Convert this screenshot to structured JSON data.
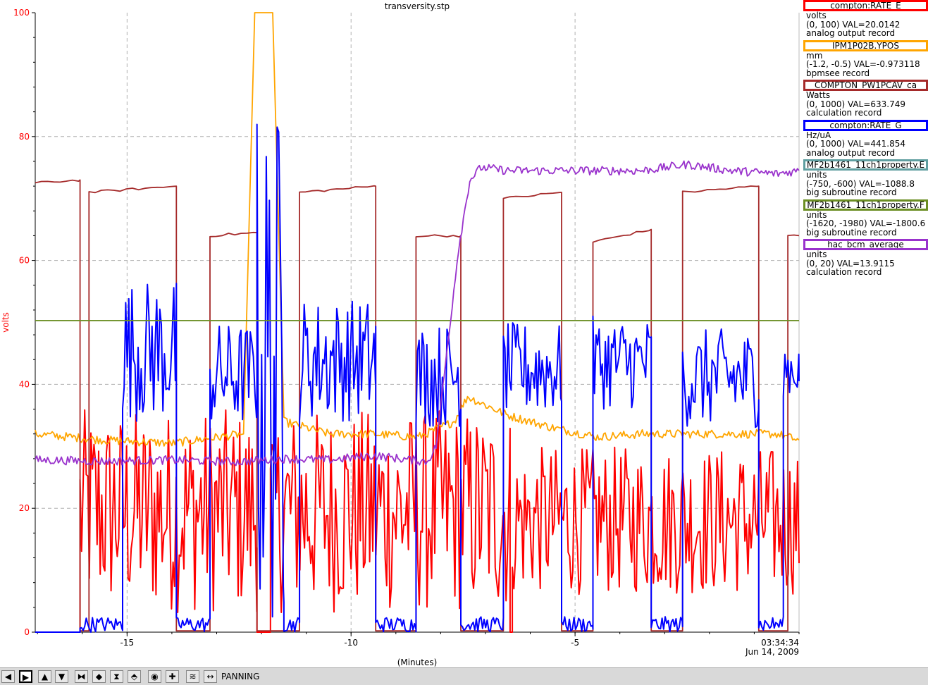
{
  "chart_data": {
    "type": "line",
    "title": "transversity.stp",
    "xlabel": "(Minutes)",
    "ylabel": "volts",
    "xlim": [
      -17.05,
      0
    ],
    "ylim": [
      0,
      100
    ],
    "x_ticks": [
      -15,
      -10,
      -5
    ],
    "y_ticks": [
      0,
      20,
      40,
      60,
      80,
      100
    ],
    "time_label": "03:34:34",
    "date_label": "Jun 14, 2009",
    "grid": true,
    "legend_position": "right",
    "series": [
      {
        "name": "compton:RATE_E",
        "color": "#ff0000",
        "units": "volts",
        "range_value": "(0, 100) VAL=20.0142",
        "record_type": "analog output record",
        "style": "noisy",
        "segments": [
          {
            "x0": -17.05,
            "x1": -16.05,
            "lo": 0,
            "hi": 0
          },
          {
            "x0": -16.05,
            "x1": -12.1,
            "lo": 3,
            "hi": 36
          },
          {
            "x0": -12.1,
            "x1": -11.8,
            "lo": 0,
            "hi": 0
          },
          {
            "x0": -11.8,
            "x1": -6.45,
            "lo": 3,
            "hi": 36
          },
          {
            "x0": -6.45,
            "x1": -6.4,
            "lo": 0,
            "hi": 0
          },
          {
            "x0": -6.4,
            "x1": 0,
            "lo": 6,
            "hi": 30
          }
        ]
      },
      {
        "name": "IPM1P02B.YPOS",
        "color": "#ffa500",
        "units": "mm",
        "range_value": "(-1.2, -0.5) VAL=-0.973118",
        "record_type": "bpmsee record",
        "style": "wander",
        "points": [
          [
            -17.05,
            32
          ],
          [
            -15.5,
            31
          ],
          [
            -14,
            30.5
          ],
          [
            -12.4,
            32
          ],
          [
            -12.15,
            100
          ],
          [
            -12.05,
            100
          ],
          [
            -11.85,
            100
          ],
          [
            -11.75,
            100
          ],
          [
            -11.5,
            34
          ],
          [
            -10.5,
            32
          ],
          [
            -9.5,
            32
          ],
          [
            -8.5,
            31.5
          ],
          [
            -7.7,
            34
          ],
          [
            -7.4,
            38
          ],
          [
            -6.5,
            35
          ],
          [
            -5.5,
            33
          ],
          [
            -4.5,
            31.5
          ],
          [
            -3.5,
            32
          ],
          [
            -2.5,
            32
          ],
          [
            -1.5,
            32
          ],
          [
            -0.5,
            32
          ],
          [
            0,
            31
          ]
        ]
      },
      {
        "name": "COMPTON_PW1PCAV_ca",
        "color": "#a52a2a",
        "units": "Watts",
        "range_value": "(0, 1000) VAL=633.749",
        "record_type": "calculation record",
        "style": "step",
        "cycles": [
          {
            "x0": -17.05,
            "x1": -16.05,
            "v0": 72.5,
            "v1": 73
          },
          {
            "x0": -15.85,
            "x1": -13.9,
            "v0": 71,
            "v1": 72
          },
          {
            "x0": -13.15,
            "x1": -12.1,
            "v0": 64,
            "v1": 64.5
          },
          {
            "x0": -11.15,
            "x1": -9.45,
            "v0": 71,
            "v1": 72
          },
          {
            "x0": -8.55,
            "x1": -7.55,
            "v0": 64,
            "v1": 64
          },
          {
            "x0": -6.6,
            "x1": -5.3,
            "v0": 70,
            "v1": 71
          },
          {
            "x0": -4.6,
            "x1": -3.3,
            "v0": 63,
            "v1": 65
          },
          {
            "x0": -2.6,
            "x1": -0.9,
            "v0": 71,
            "v1": 72
          },
          {
            "x0": -0.25,
            "x1": 0,
            "v0": 64,
            "v1": 64
          }
        ],
        "low_value": 0.2
      },
      {
        "name": "compton:RATE_G",
        "color": "#0000ff",
        "units": "Hz/uA",
        "range_value": "(0, 1000) VAL=441.854",
        "record_type": "analog output record",
        "style": "noisy",
        "segments": [
          {
            "x0": -17.05,
            "x1": -16.05,
            "lo": 0,
            "hi": 0
          },
          {
            "x0": -16.05,
            "x1": -15.1,
            "lo": 0,
            "hi": 2.5
          },
          {
            "x0": -15.1,
            "x1": -13.9,
            "lo": 34,
            "hi": 57
          },
          {
            "x0": -13.9,
            "x1": -13.15,
            "lo": 0,
            "hi": 2.5
          },
          {
            "x0": -13.15,
            "x1": -12.1,
            "lo": 33,
            "hi": 50
          },
          {
            "x0": -12.1,
            "x1": -11.5,
            "lo": 0,
            "hi": 85
          },
          {
            "x0": -11.5,
            "x1": -11.15,
            "lo": 0,
            "hi": 2.5
          },
          {
            "x0": -11.15,
            "x1": -9.45,
            "lo": 34,
            "hi": 54
          },
          {
            "x0": -9.45,
            "x1": -8.55,
            "lo": 0,
            "hi": 2.5
          },
          {
            "x0": -8.55,
            "x1": -7.55,
            "lo": 33,
            "hi": 50
          },
          {
            "x0": -7.55,
            "x1": -6.6,
            "lo": 0,
            "hi": 2.5
          },
          {
            "x0": -6.6,
            "x1": -5.3,
            "lo": 35,
            "hi": 50
          },
          {
            "x0": -5.3,
            "x1": -4.6,
            "lo": 0,
            "hi": 2.5
          },
          {
            "x0": -4.6,
            "x1": -3.3,
            "lo": 36,
            "hi": 51
          },
          {
            "x0": -3.3,
            "x1": -2.6,
            "lo": 0,
            "hi": 2.5
          },
          {
            "x0": -2.6,
            "x1": -0.9,
            "lo": 33,
            "hi": 49
          },
          {
            "x0": -0.9,
            "x1": -0.35,
            "lo": 0,
            "hi": 2.5
          },
          {
            "x0": -0.35,
            "x1": 0,
            "lo": 38,
            "hi": 47
          }
        ]
      },
      {
        "name": "MF2b1461_11ch1property.E",
        "color": "#5f9ea0",
        "units": "units",
        "range_value": "(-750, -600) VAL=-1088.8",
        "record_type": "big subroutine record",
        "style": "offscale"
      },
      {
        "name": "MF2b1461_11ch1property.F",
        "color": "#6b8e23",
        "units": "units",
        "range_value": "(-1620, -1980)  VAL=-1800.6",
        "record_type": "big subroutine record",
        "style": "flat",
        "points": [
          [
            -17.05,
            50.3
          ],
          [
            0,
            50.3
          ]
        ]
      },
      {
        "name": "hac_bcm_average",
        "color": "#9932cc",
        "units": "units",
        "range_value": "(0, 20) VAL=13.9115",
        "record_type": "calculation record",
        "style": "wander",
        "points": [
          [
            -17.05,
            27.8
          ],
          [
            -15.5,
            27.6
          ],
          [
            -14,
            27.8
          ],
          [
            -12.5,
            27.5
          ],
          [
            -11.5,
            28
          ],
          [
            -10.5,
            27.8
          ],
          [
            -9.5,
            28.5
          ],
          [
            -8.3,
            27.5
          ],
          [
            -8.1,
            30
          ],
          [
            -7.6,
            62
          ],
          [
            -7.35,
            73
          ],
          [
            -7.1,
            75
          ],
          [
            -6.5,
            74.5
          ],
          [
            -5.5,
            74.5
          ],
          [
            -4.5,
            74.5
          ],
          [
            -3.5,
            74.5
          ],
          [
            -2.5,
            75.5
          ],
          [
            -1.5,
            74.5
          ],
          [
            -0.5,
            74
          ],
          [
            0,
            74.5
          ]
        ]
      }
    ]
  },
  "toolbar": {
    "buttons": [
      {
        "name": "scroll-left-button",
        "glyph": "◀",
        "active": false
      },
      {
        "name": "scroll-right-button",
        "glyph": "▶",
        "active": true
      },
      {
        "name": "scroll-up-button",
        "glyph": "▲",
        "active": false
      },
      {
        "name": "scroll-down-button",
        "glyph": "▼",
        "active": false
      },
      {
        "name": "compress-horizontal-button",
        "glyph": "⧓",
        "active": false
      },
      {
        "name": "expand-horizontal-button",
        "glyph": "◆",
        "active": false
      },
      {
        "name": "compress-vertical-button",
        "glyph": "⧗",
        "active": false
      },
      {
        "name": "expand-vertical-button",
        "glyph": "⬘",
        "active": false
      },
      {
        "name": "zoom-button",
        "glyph": "◉",
        "active": false
      },
      {
        "name": "crosshair-button",
        "glyph": "✚",
        "active": false
      },
      {
        "name": "autoscale-button",
        "glyph": "≋",
        "active": false
      },
      {
        "name": "pan-button",
        "glyph": "↔",
        "active": false
      }
    ],
    "mode": "PANNING"
  }
}
